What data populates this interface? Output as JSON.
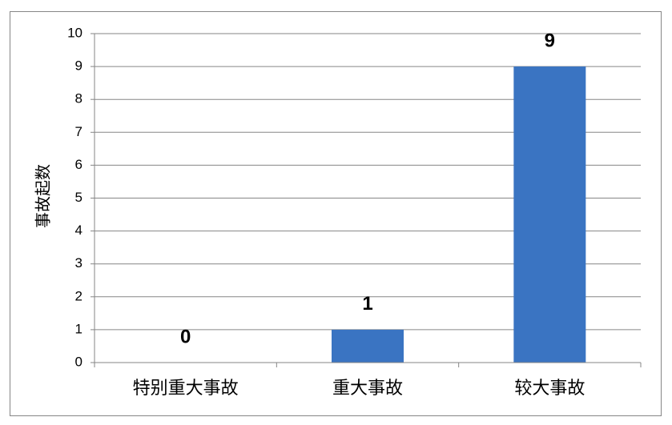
{
  "chart_data": {
    "type": "bar",
    "y_label": "事故起数",
    "categories": [
      "特别重大事故",
      "重大事故",
      "较大事故"
    ],
    "values": [
      0,
      1,
      9
    ],
    "color": "#3a74c2",
    "ylim": [
      0,
      10
    ],
    "yticks": [
      0,
      1,
      2,
      3,
      4,
      5,
      6,
      7,
      8,
      9,
      10
    ],
    "grid": true
  }
}
